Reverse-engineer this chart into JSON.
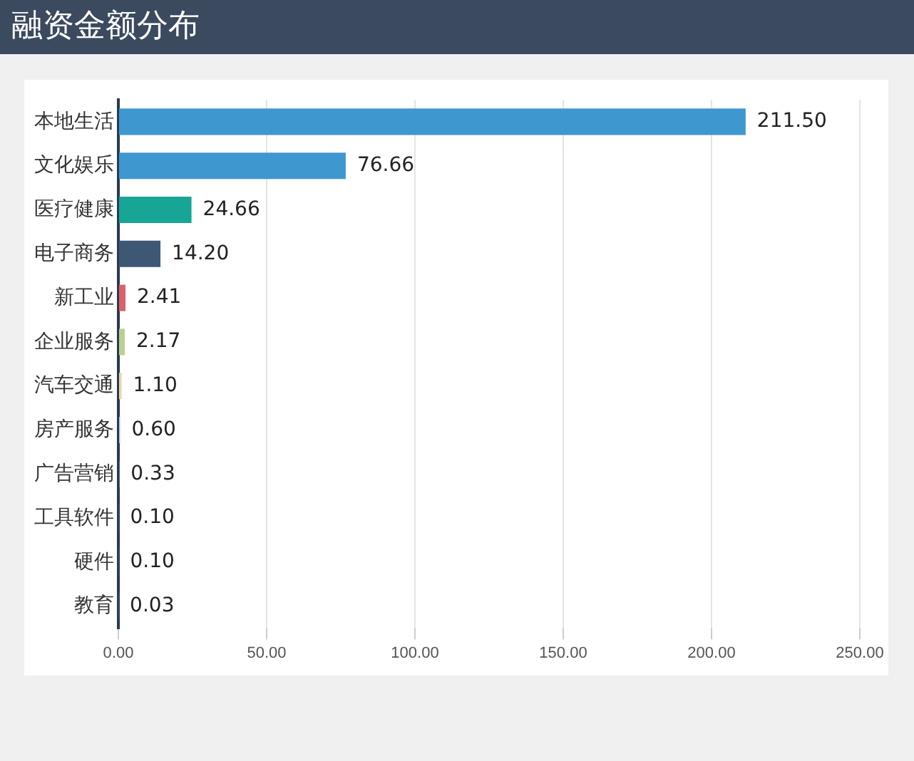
{
  "chart_data": {
    "type": "bar",
    "orientation": "horizontal",
    "title": "融资金额分布",
    "categories": [
      "本地生活",
      "文化娱乐",
      "医疗健康",
      "电子商务",
      "新工业",
      "企业服务",
      "汽车交通",
      "房产服务",
      "广告营销",
      "工具软件",
      "硬件",
      "教育"
    ],
    "values": [
      211.5,
      76.66,
      24.66,
      14.2,
      2.41,
      2.17,
      1.1,
      0.6,
      0.33,
      0.1,
      0.1,
      0.03
    ],
    "colors": [
      "#3f97cf",
      "#3f97cf",
      "#17a596",
      "#3d5775",
      "#d9626b",
      "#b8d08f",
      "#e8d9a8",
      "#a8c8e0",
      "#7aa6c9",
      "#3d5775",
      "#3d5775",
      "#3d5775"
    ],
    "value_labels": [
      "211.50",
      "76.66",
      "24.66",
      "14.20",
      "2.41",
      "2.17",
      "1.10",
      "0.60",
      "0.33",
      "0.10",
      "0.10",
      "0.03"
    ],
    "xlim": [
      0,
      250
    ],
    "xticks": [
      {
        "value": 0,
        "label": "0.00"
      },
      {
        "value": 50,
        "label": "50.00"
      },
      {
        "value": 100,
        "label": "100.00"
      },
      {
        "value": 150,
        "label": "150.00"
      },
      {
        "value": 200,
        "label": "200.00"
      },
      {
        "value": 250,
        "label": "250.00"
      }
    ],
    "grid": "x",
    "legend": false
  }
}
